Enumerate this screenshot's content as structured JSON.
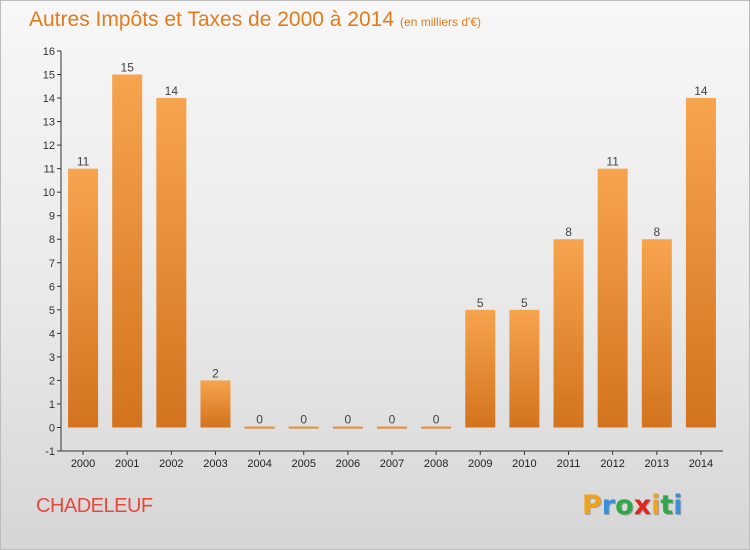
{
  "title": "Autres Impôts et Taxes de 2000 à 2014",
  "subtitle": "(en milliers d'€)",
  "place_name": "CHADELEUF",
  "brand": {
    "letters": [
      "P",
      "r",
      "o",
      "x",
      "i",
      "t",
      "i"
    ],
    "colors": [
      "#f0a21b",
      "#3d8fd8",
      "#2fa84a",
      "#e0261d",
      "#f0a21b",
      "#2fa84a",
      "#3d8fd8"
    ]
  },
  "colors": {
    "title": "#e07c1c",
    "place_name": "#e7493e",
    "bar_light": "#f7a44e",
    "bar_dark": "#d3731d"
  },
  "chart_data": {
    "type": "bar",
    "categories": [
      "2000",
      "2001",
      "2002",
      "2003",
      "2004",
      "2005",
      "2006",
      "2007",
      "2008",
      "2009",
      "2010",
      "2011",
      "2012",
      "2013",
      "2014"
    ],
    "values": [
      11,
      15,
      14,
      2,
      0,
      0,
      0,
      0,
      0,
      5,
      5,
      8,
      11,
      8,
      14
    ],
    "data_labels": [
      "11",
      "15",
      "14",
      "2",
      "0",
      "0",
      "0",
      "0",
      "0",
      "5",
      "5",
      "8",
      "11",
      "8",
      "14"
    ],
    "title": "Autres Impôts et Taxes de 2000 à 2014",
    "xlabel": "",
    "ylabel": "",
    "ylim": [
      -1,
      16
    ],
    "yticks": [
      "-1",
      "0",
      "1",
      "2",
      "3",
      "4",
      "5",
      "6",
      "7",
      "8",
      "9",
      "10",
      "11",
      "12",
      "13",
      "14",
      "15",
      "16"
    ],
    "grid": false,
    "legend": "none"
  }
}
